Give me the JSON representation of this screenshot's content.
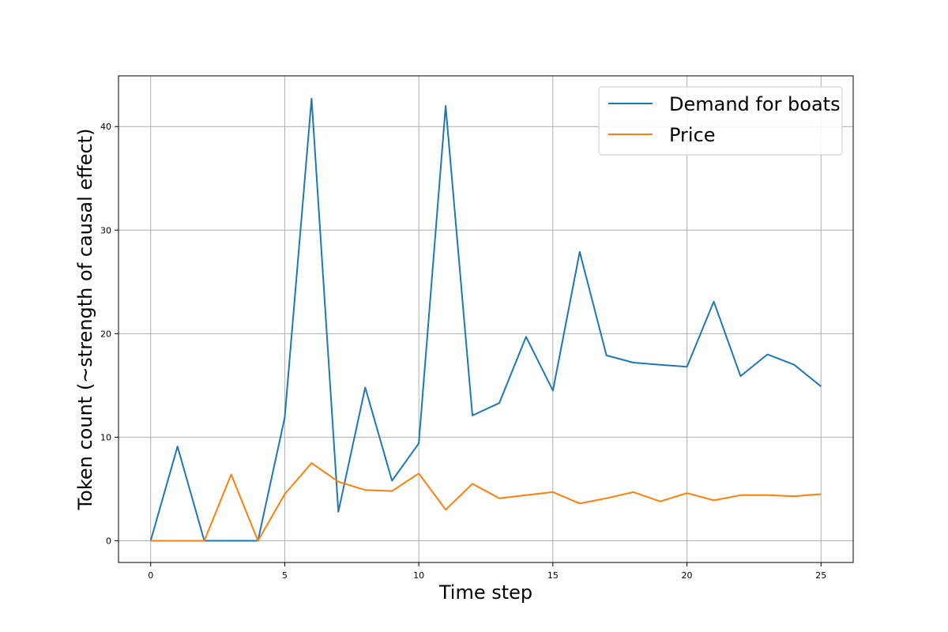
{
  "chart_data": {
    "type": "line",
    "xlabel": "Time step",
    "ylabel": "Token count (~strength of causal effect)",
    "xlim": [
      -1.2,
      26.2
    ],
    "ylim": [
      -2.1,
      44.9
    ],
    "xticks": [
      0,
      5,
      10,
      15,
      20,
      25
    ],
    "yticks": [
      0,
      10,
      20,
      30,
      40
    ],
    "grid": true,
    "legend_position": "top-right",
    "x": [
      0,
      1,
      2,
      3,
      4,
      5,
      6,
      7,
      8,
      9,
      10,
      11,
      12,
      13,
      14,
      15,
      16,
      17,
      18,
      19,
      20,
      21,
      22,
      23,
      24,
      25
    ],
    "series": [
      {
        "name": "Demand for boats",
        "color": "#1f77b4",
        "values": [
          0,
          9.1,
          0,
          0,
          0,
          11.9,
          42.7,
          2.8,
          14.8,
          5.8,
          9.4,
          42.0,
          12.1,
          13.3,
          19.7,
          14.5,
          27.9,
          17.9,
          17.2,
          17.0,
          16.8,
          23.1,
          15.9,
          18.0,
          17.0,
          14.9
        ]
      },
      {
        "name": "Price",
        "color": "#ff7f0e",
        "values": [
          0,
          0,
          0,
          6.4,
          0,
          4.5,
          7.5,
          5.7,
          4.9,
          4.8,
          6.5,
          3.0,
          5.5,
          4.1,
          4.4,
          4.7,
          3.6,
          4.1,
          4.7,
          3.8,
          4.6,
          3.9,
          4.4,
          4.4,
          4.3,
          4.5
        ]
      }
    ]
  }
}
